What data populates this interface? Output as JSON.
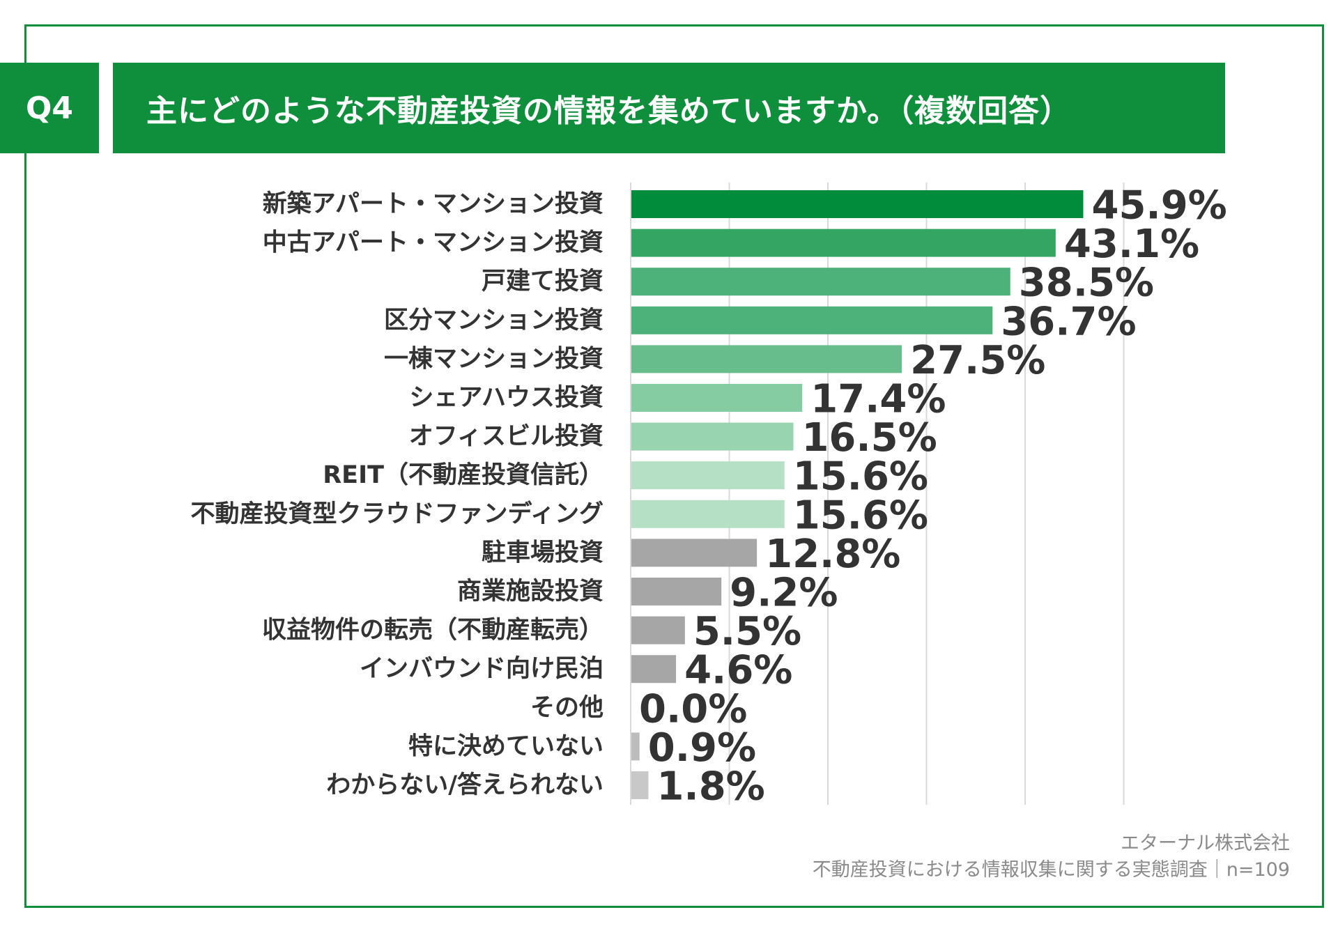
{
  "header": {
    "badge": "Q4",
    "title": "主にどのような不動産投資の情報を集めていますか。（複数回答）"
  },
  "footer": {
    "company": "エターナル株式会社",
    "survey": "不動産投資における情報収集に関する実態調査｜n=109"
  },
  "chart_data": {
    "type": "bar",
    "orientation": "horizontal",
    "title": "主にどのような不動産投資の情報を集めていますか。（複数回答）",
    "unit": "%",
    "xlim": [
      0,
      50
    ],
    "grid": true,
    "categories": [
      "新築アパート・マンション投資",
      "中古アパート・マンション投資",
      "戸建て投資",
      "区分マンション投資",
      "一棟マンション投資",
      "シェアハウス投資",
      "オフィスビル投資",
      "REIT（不動産投資信託）",
      "不動産投資型クラウドファンディング",
      "駐車場投資",
      "商業施設投資",
      "収益物件の転売（不動産転売）",
      "インバウンド向け民泊",
      "その他",
      "特に決めていない",
      "わからない/答えられない"
    ],
    "values": [
      45.9,
      43.1,
      38.5,
      36.7,
      27.5,
      17.4,
      16.5,
      15.6,
      15.6,
      12.8,
      9.2,
      5.5,
      4.6,
      0.0,
      0.9,
      1.8
    ],
    "value_labels": [
      "45.9%",
      "43.1%",
      "38.5%",
      "36.7%",
      "27.5%",
      "17.4%",
      "16.5%",
      "15.6%",
      "15.6%",
      "12.8%",
      "9.2%",
      "5.5%",
      "4.6%",
      "0.0%",
      "0.9%",
      "1.8%"
    ],
    "colors": [
      "#008c3a",
      "#35a564",
      "#4db27a",
      "#4db27a",
      "#67be8c",
      "#86cca2",
      "#99d4b0",
      "#b5e0c5",
      "#b5e0c5",
      "#a6a6a6",
      "#a6a6a6",
      "#a6a6a6",
      "#a6a6a6",
      "#a6a6a6",
      "#bcbcbc",
      "#c8c8c8"
    ]
  }
}
